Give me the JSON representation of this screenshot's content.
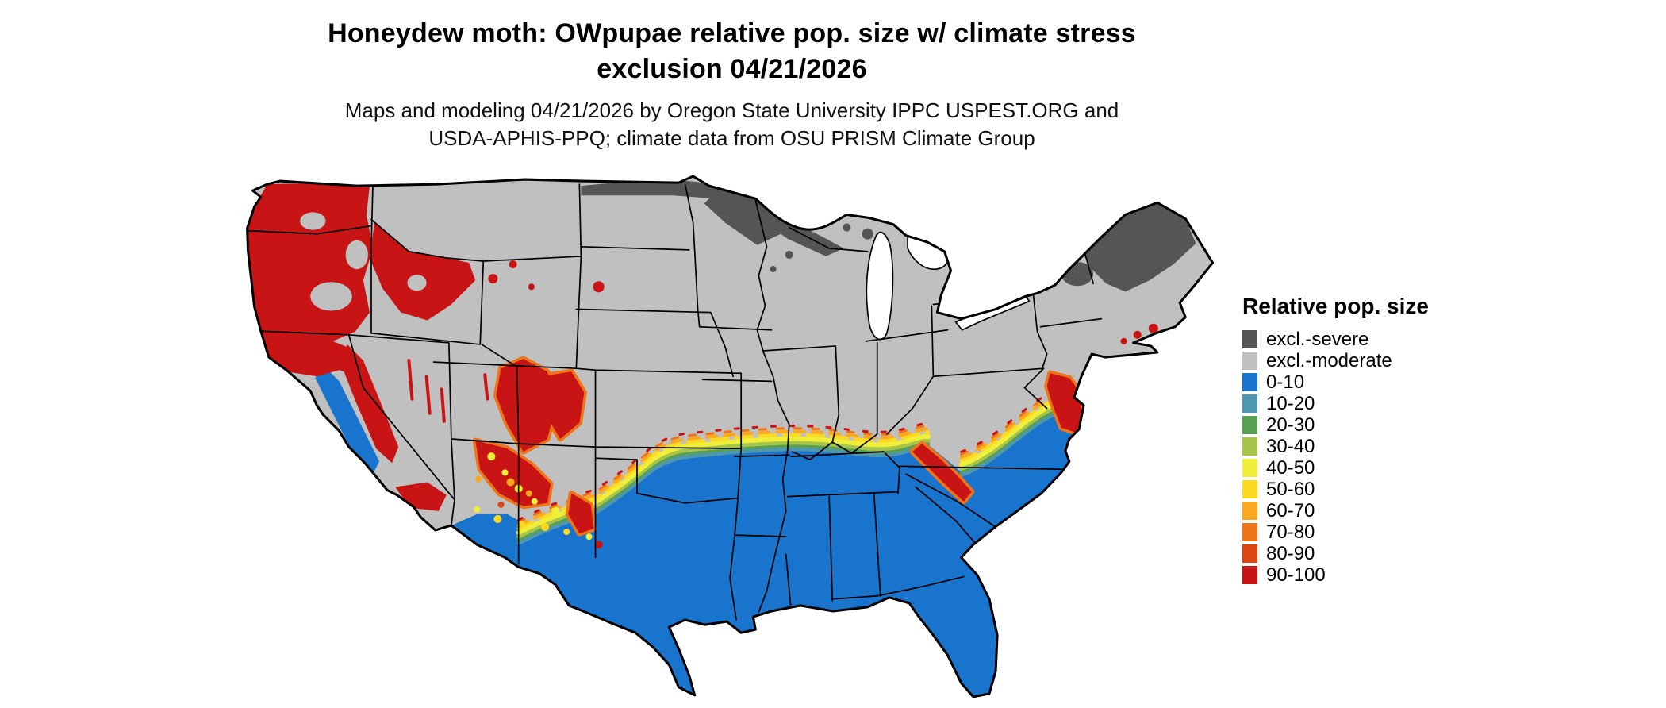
{
  "figure": {
    "title_line1": "Honeydew moth: OWpupae relative pop. size w/ climate stress",
    "title_line2": "exclusion 04/21/2026",
    "credit_line1": "Maps and modeling 04/21/2026 by Oregon State University IPPC USPEST.ORG and",
    "credit_line2": "USDA-APHIS-PPQ; climate data from OSU PRISM Climate Group"
  },
  "legend": {
    "title": "Relative pop. size",
    "items": [
      {
        "label": "excl.-severe",
        "color": "#555555"
      },
      {
        "label": "excl.-moderate",
        "color": "#c0c0c0"
      },
      {
        "label": "0-10",
        "color": "#1874cd"
      },
      {
        "label": "10-20",
        "color": "#4f97ae"
      },
      {
        "label": "20-30",
        "color": "#5aa054"
      },
      {
        "label": "30-40",
        "color": "#a6c54a"
      },
      {
        "label": "40-50",
        "color": "#f0ee38"
      },
      {
        "label": "50-60",
        "color": "#fbda1f"
      },
      {
        "label": "60-70",
        "color": "#fca81f"
      },
      {
        "label": "70-80",
        "color": "#ef7417"
      },
      {
        "label": "80-90",
        "color": "#dc4414"
      },
      {
        "label": "90-100",
        "color": "#c81414"
      }
    ]
  },
  "map": {
    "region": "Continental United States"
  }
}
